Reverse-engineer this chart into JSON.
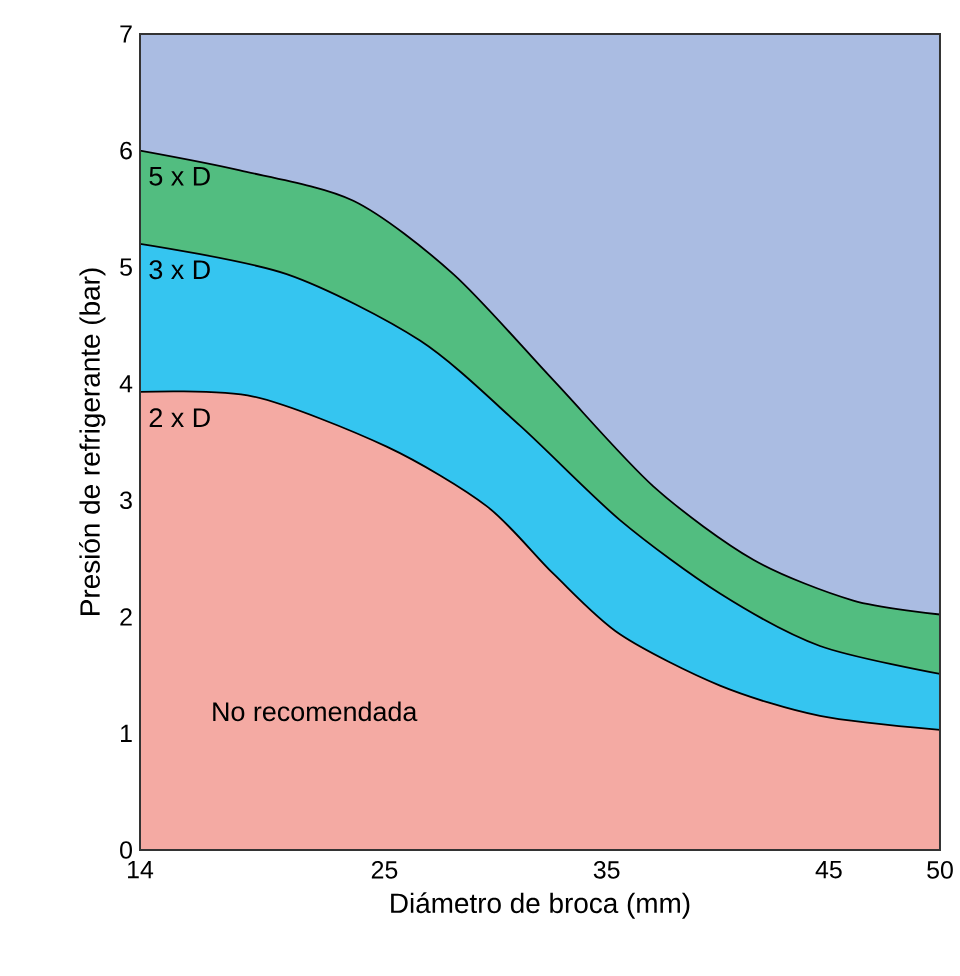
{
  "chart_data": {
    "type": "area",
    "xlabel": "Diámetro de broca (mm)",
    "ylabel": "Presión de refrigerante (bar)",
    "xlim": [
      14,
      50
    ],
    "ylim": [
      0,
      7
    ],
    "xticks": [
      14,
      25,
      35,
      45,
      50
    ],
    "yticks": [
      0,
      1,
      2,
      3,
      4,
      5,
      6,
      7
    ],
    "grid": false,
    "annotations": [
      "No recomendada"
    ],
    "series": [
      {
        "name": "5 x D",
        "color": "#52bd80",
        "x": [
          14,
          18.5,
          23.6,
          28.1,
          32.6,
          37.1,
          41.6,
          46.1,
          50
        ],
        "values": [
          6.0,
          5.83,
          5.57,
          4.94,
          4.03,
          3.12,
          2.49,
          2.14,
          2.02
        ]
      },
      {
        "name": "3 x D",
        "color": "#35c5f0",
        "x": [
          14,
          20.6,
          26.6,
          31.1,
          35.6,
          40.1,
          44.6,
          50
        ],
        "values": [
          5.2,
          4.94,
          4.37,
          3.64,
          2.83,
          2.2,
          1.75,
          1.51
        ]
      },
      {
        "name": "2 x D",
        "color": "#f4aaa3",
        "x": [
          14,
          19.1,
          25.1,
          29.6,
          32.6,
          35.6,
          40.1,
          44.6,
          50
        ],
        "values": [
          3.93,
          3.89,
          3.46,
          2.95,
          2.37,
          1.85,
          1.41,
          1.15,
          1.03
        ]
      }
    ]
  }
}
